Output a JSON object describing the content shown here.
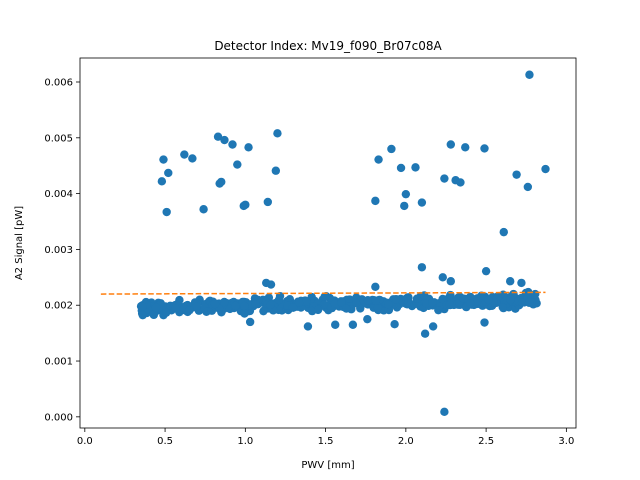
{
  "chart_data": {
    "type": "scatter",
    "title": "Detector Index: Mv19_f090_Br07c08A",
    "xlabel": "PWV [mm]",
    "ylabel": "A2 Signal [pW]",
    "xlim": [
      -0.03,
      3.06
    ],
    "ylim": [
      -0.0002,
      0.00643
    ],
    "xticks": [
      0.0,
      0.5,
      1.0,
      1.5,
      2.0,
      2.5,
      3.0
    ],
    "xtick_labels": [
      "0.0",
      "0.5",
      "1.0",
      "1.5",
      "2.0",
      "2.5",
      "3.0"
    ],
    "yticks": [
      0.0,
      0.001,
      0.002,
      0.003,
      0.004,
      0.005,
      0.006
    ],
    "ytick_labels": [
      "0.000",
      "0.001",
      "0.002",
      "0.003",
      "0.004",
      "0.005",
      "0.006"
    ],
    "marker_color": "#1f77b4",
    "fit_color": "#ff7f0e",
    "fit_line": {
      "x": [
        0.1,
        2.87
      ],
      "y": [
        0.0022,
        0.00223
      ]
    },
    "outliers": [
      {
        "x": 0.48,
        "y": 0.00422
      },
      {
        "x": 0.49,
        "y": 0.00461
      },
      {
        "x": 0.51,
        "y": 0.00367
      },
      {
        "x": 0.52,
        "y": 0.00437
      },
      {
        "x": 0.62,
        "y": 0.0047
      },
      {
        "x": 0.67,
        "y": 0.00463
      },
      {
        "x": 0.74,
        "y": 0.00372
      },
      {
        "x": 0.83,
        "y": 0.00502
      },
      {
        "x": 0.84,
        "y": 0.00418
      },
      {
        "x": 0.85,
        "y": 0.00421
      },
      {
        "x": 0.87,
        "y": 0.00496
      },
      {
        "x": 0.92,
        "y": 0.00488
      },
      {
        "x": 0.95,
        "y": 0.00452
      },
      {
        "x": 0.99,
        "y": 0.00378
      },
      {
        "x": 1.0,
        "y": 0.0038
      },
      {
        "x": 1.02,
        "y": 0.00483
      },
      {
        "x": 1.14,
        "y": 0.00385
      },
      {
        "x": 1.19,
        "y": 0.00441
      },
      {
        "x": 1.2,
        "y": 0.00508
      },
      {
        "x": 1.81,
        "y": 0.00387
      },
      {
        "x": 1.83,
        "y": 0.00461
      },
      {
        "x": 1.91,
        "y": 0.0048
      },
      {
        "x": 1.97,
        "y": 0.00446
      },
      {
        "x": 1.99,
        "y": 0.00378
      },
      {
        "x": 2.0,
        "y": 0.00399
      },
      {
        "x": 2.06,
        "y": 0.00447
      },
      {
        "x": 2.1,
        "y": 0.00384
      },
      {
        "x": 2.24,
        "y": 0.00427
      },
      {
        "x": 2.28,
        "y": 0.00488
      },
      {
        "x": 2.31,
        "y": 0.00424
      },
      {
        "x": 2.34,
        "y": 0.0042
      },
      {
        "x": 2.37,
        "y": 0.00483
      },
      {
        "x": 2.49,
        "y": 0.00481
      },
      {
        "x": 2.61,
        "y": 0.00331
      },
      {
        "x": 2.69,
        "y": 0.00434
      },
      {
        "x": 2.76,
        "y": 0.00412
      },
      {
        "x": 2.77,
        "y": 0.00613
      },
      {
        "x": 2.87,
        "y": 0.00444
      },
      {
        "x": 2.24,
        "y": 9e-05
      },
      {
        "x": 2.12,
        "y": 0.00149
      },
      {
        "x": 2.17,
        "y": 0.00162
      },
      {
        "x": 1.03,
        "y": 0.0017
      },
      {
        "x": 1.39,
        "y": 0.00162
      },
      {
        "x": 1.56,
        "y": 0.00165
      },
      {
        "x": 1.67,
        "y": 0.00165
      },
      {
        "x": 1.76,
        "y": 0.00175
      },
      {
        "x": 1.93,
        "y": 0.00166
      },
      {
        "x": 2.49,
        "y": 0.00169
      },
      {
        "x": 2.1,
        "y": 0.00268
      },
      {
        "x": 2.5,
        "y": 0.00261
      },
      {
        "x": 1.13,
        "y": 0.0024
      },
      {
        "x": 1.16,
        "y": 0.00237
      },
      {
        "x": 1.81,
        "y": 0.00233
      },
      {
        "x": 2.23,
        "y": 0.0025
      },
      {
        "x": 2.28,
        "y": 0.00243
      },
      {
        "x": 2.65,
        "y": 0.00243
      },
      {
        "x": 2.72,
        "y": 0.0024
      }
    ],
    "cluster": {
      "n_points": 460,
      "x_range": [
        0.35,
        2.82
      ],
      "y_center_start": 0.00195,
      "y_center_end": 0.0021,
      "y_spread": 0.00012
    }
  }
}
